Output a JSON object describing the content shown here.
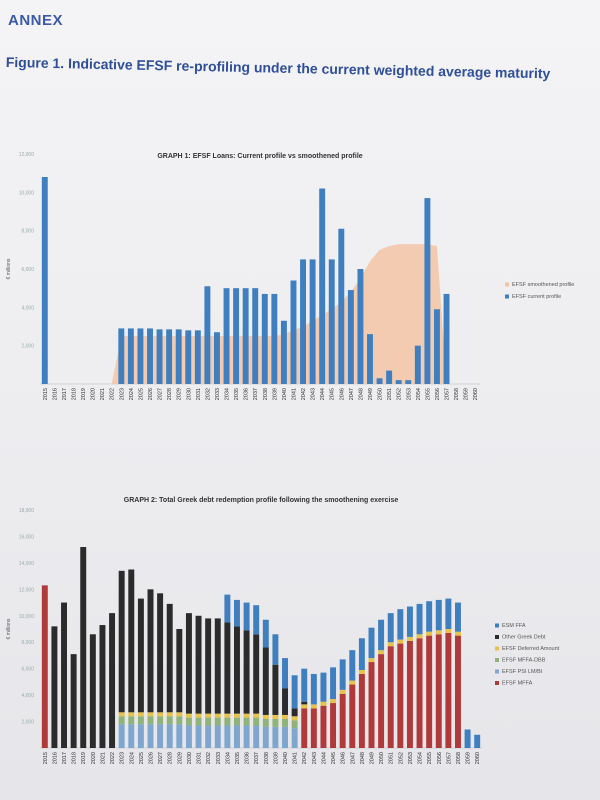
{
  "header": {
    "annex": "ANNEX",
    "figure_title": "Figure 1. Indicative EFSF re-profiling under the current weighted average maturity"
  },
  "chart_data": [
    {
      "type": "bar",
      "title": "GRAPH 1: EFSF Loans: Current profile vs smoothened profile",
      "ylabel": "€ millions",
      "ylim": [
        0,
        12000
      ],
      "yticks": [
        "2,000",
        "4,000",
        "6,000",
        "8,000",
        "10,000",
        "12,000"
      ],
      "categories": [
        "2015",
        "2016",
        "2017",
        "2018",
        "2019",
        "2020",
        "2021",
        "2022",
        "2023",
        "2024",
        "2025",
        "2026",
        "2027",
        "2028",
        "2029",
        "2030",
        "2031",
        "2032",
        "2033",
        "2034",
        "2035",
        "2036",
        "2037",
        "2038",
        "2039",
        "2040",
        "2041",
        "2042",
        "2043",
        "2044",
        "2045",
        "2046",
        "2047",
        "2048",
        "2049",
        "2050",
        "2051",
        "2052",
        "2053",
        "2054",
        "2055",
        "2056",
        "2057",
        "2058",
        "2059",
        "2060"
      ],
      "legend_position": "right",
      "series": [
        {
          "name": "EFSF smoothened profile",
          "type": "area",
          "color": "#f2c4a6",
          "values": [
            0,
            0,
            0,
            0,
            0,
            0,
            0,
            0,
            2500,
            2500,
            2500,
            2500,
            2500,
            2500,
            2500,
            2500,
            2500,
            2500,
            2500,
            2500,
            2500,
            2500,
            2500,
            2500,
            2500,
            2600,
            2800,
            3000,
            3300,
            3600,
            3900,
            4300,
            4800,
            5500,
            6400,
            7000,
            7200,
            7300,
            7300,
            7300,
            7300,
            7200,
            0,
            0,
            0,
            0
          ]
        },
        {
          "name": "EFSF current profile",
          "type": "bar",
          "color": "#3f7fc0",
          "values": [
            10800,
            0,
            0,
            0,
            0,
            0,
            0,
            0,
            2900,
            2900,
            2900,
            2900,
            2850,
            2850,
            2850,
            2800,
            2800,
            5100,
            2700,
            5000,
            5000,
            5000,
            5000,
            4700,
            4700,
            3300,
            5400,
            6500,
            6500,
            10200,
            6500,
            8100,
            4900,
            6000,
            2600,
            300,
            700,
            200,
            200,
            2000,
            9700,
            3900,
            4700,
            0,
            0,
            0
          ]
        }
      ]
    },
    {
      "type": "bar",
      "stacked": true,
      "title": "GRAPH 2: Total Greek debt redemption profile following the smoothening exercise",
      "ylabel": "€ millions",
      "ylim": [
        0,
        18000
      ],
      "yticks": [
        "2,000",
        "4,000",
        "6,000",
        "8,000",
        "10,000",
        "12,000",
        "14,000",
        "16,000",
        "18,000"
      ],
      "categories": [
        "2015",
        "2016",
        "2017",
        "2018",
        "2019",
        "2020",
        "2021",
        "2022",
        "2023",
        "2024",
        "2025",
        "2026",
        "2027",
        "2028",
        "2029",
        "2030",
        "2031",
        "2032",
        "2033",
        "2034",
        "2035",
        "2036",
        "2037",
        "2038",
        "2039",
        "2040",
        "2041",
        "2042",
        "2043",
        "2044",
        "2045",
        "2046",
        "2047",
        "2048",
        "2049",
        "2050",
        "2051",
        "2052",
        "2053",
        "2054",
        "2055",
        "2056",
        "2057",
        "2058",
        "2059",
        "2060"
      ],
      "legend_position": "right",
      "series": [
        {
          "name": "EFSF MFFA",
          "color": "#b03a3a",
          "values": [
            12300,
            0,
            0,
            0,
            0,
            0,
            0,
            0,
            0,
            0,
            0,
            0,
            0,
            0,
            0,
            0,
            0,
            0,
            0,
            0,
            0,
            0,
            0,
            0,
            0,
            0,
            0,
            3000,
            3000,
            3200,
            3400,
            4100,
            4800,
            5600,
            6500,
            7100,
            7700,
            7900,
            8100,
            8300,
            8500,
            8600,
            8700,
            8500,
            0,
            0
          ]
        },
        {
          "name": "EFSF PSI LM/BI",
          "color": "#7fa6cf",
          "values": [
            0,
            0,
            0,
            0,
            0,
            0,
            0,
            0,
            1800,
            1800,
            1800,
            1800,
            1800,
            1800,
            1800,
            1700,
            1700,
            1700,
            1700,
            1700,
            1700,
            1700,
            1700,
            1600,
            1600,
            1600,
            1500,
            0,
            0,
            0,
            0,
            0,
            0,
            0,
            0,
            0,
            0,
            0,
            0,
            0,
            0,
            0,
            0,
            0,
            0,
            0
          ]
        },
        {
          "name": "EFSF MFFA-DBB",
          "color": "#8fb37a",
          "values": [
            0,
            0,
            0,
            0,
            0,
            0,
            0,
            0,
            600,
            600,
            600,
            600,
            600,
            600,
            600,
            600,
            600,
            600,
            600,
            600,
            600,
            600,
            600,
            600,
            600,
            600,
            600,
            0,
            0,
            0,
            0,
            0,
            0,
            0,
            0,
            0,
            0,
            0,
            0,
            0,
            0,
            0,
            0,
            0,
            0,
            0
          ]
        },
        {
          "name": "EFSF Deferred Amount",
          "color": "#e6c34a",
          "values": [
            0,
            0,
            0,
            0,
            0,
            0,
            0,
            0,
            300,
            300,
            300,
            300,
            300,
            300,
            300,
            300,
            300,
            300,
            300,
            300,
            300,
            300,
            300,
            300,
            300,
            300,
            300,
            300,
            300,
            300,
            300,
            300,
            300,
            300,
            300,
            300,
            300,
            300,
            300,
            300,
            300,
            300,
            300,
            300,
            0,
            0
          ]
        },
        {
          "name": "Other Greek Debt",
          "color": "#2b2b2b",
          "values": [
            0,
            9200,
            11000,
            7100,
            15200,
            8600,
            9300,
            10200,
            10700,
            10800,
            8600,
            9300,
            9000,
            8200,
            6300,
            7600,
            7400,
            7200,
            7200,
            6900,
            6600,
            6300,
            6000,
            5100,
            3800,
            2000,
            600,
            200,
            0,
            0,
            0,
            0,
            0,
            0,
            0,
            0,
            0,
            0,
            0,
            0,
            0,
            0,
            0,
            0,
            0,
            0
          ]
        },
        {
          "name": "ESM FFA",
          "color": "#3f7fc0",
          "values": [
            0,
            0,
            0,
            0,
            0,
            0,
            0,
            0,
            0,
            0,
            0,
            0,
            0,
            0,
            0,
            0,
            0,
            0,
            0,
            2100,
            2000,
            2100,
            2200,
            2100,
            2300,
            2300,
            2500,
            2500,
            2300,
            2200,
            2400,
            2300,
            2300,
            2400,
            2300,
            2300,
            2200,
            2300,
            2300,
            2300,
            2300,
            2300,
            2300,
            2200,
            1400,
            1000
          ]
        }
      ]
    }
  ]
}
